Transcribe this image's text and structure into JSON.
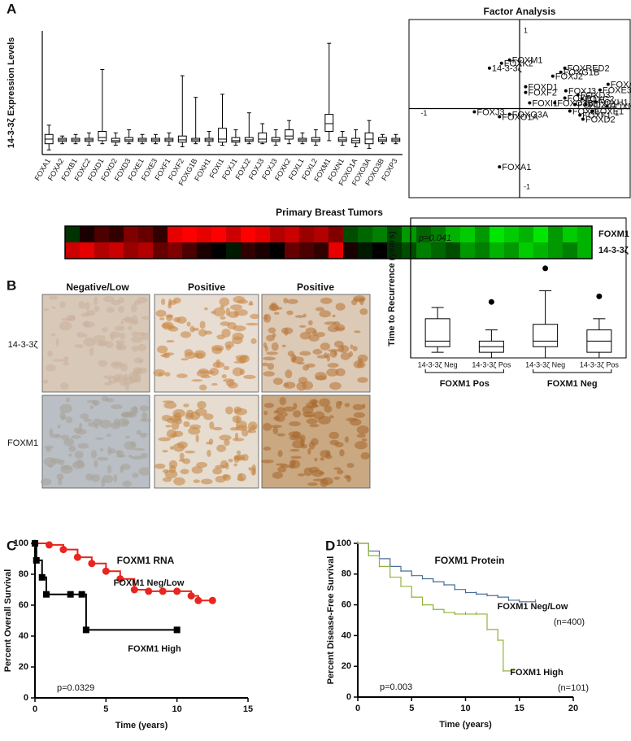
{
  "panels": [
    "A",
    "B",
    "C",
    "D"
  ],
  "ihc": {
    "columns": [
      "Negative/Low",
      "Positive",
      "Positive"
    ],
    "rows": [
      "14-3-3ζ",
      "FOXM1"
    ]
  },
  "chart_data": [
    {
      "type": "box",
      "ylabel": "14-3-3ζ Expression Levels",
      "categories": [
        "FOXA1",
        "FOXA2",
        "FOXB1",
        "FOXC2",
        "FOXD1",
        "FOXD2",
        "FOXD3",
        "FOXE1",
        "FOXE3",
        "FOXF1",
        "FOXF2",
        "FOXG1B",
        "FOXH1",
        "FOXI1",
        "FOXJ1",
        "FOXJ2",
        "FOXJ3",
        "FOXJ3",
        "FOXK2",
        "FOXL1",
        "FOXL2",
        "FOXM1",
        "FOXN1",
        "FOXO1A",
        "FOXO3A",
        "FOXO3B",
        "FOXP3"
      ],
      "min": [
        0.3,
        0.7,
        0.7,
        0.6,
        0.7,
        0.6,
        0.7,
        0.7,
        0.7,
        0.6,
        0.5,
        0.7,
        0.6,
        0.6,
        0.6,
        0.7,
        0.7,
        0.6,
        0.7,
        0.7,
        0.6,
        0.9,
        0.6,
        0.5,
        0.4,
        0.7,
        0.7
      ],
      "q1": [
        0.7,
        0.85,
        0.85,
        0.85,
        0.9,
        0.8,
        0.85,
        0.85,
        0.85,
        0.85,
        0.8,
        0.85,
        0.85,
        0.8,
        0.8,
        0.85,
        0.8,
        0.85,
        1.0,
        0.85,
        0.85,
        1.5,
        0.85,
        0.75,
        0.7,
        0.85,
        0.85
      ],
      "median": [
        1.0,
        0.95,
        0.95,
        0.95,
        1.1,
        0.9,
        0.95,
        0.95,
        0.95,
        0.95,
        0.95,
        0.95,
        0.95,
        1.0,
        0.9,
        0.95,
        1.0,
        0.95,
        1.2,
        0.95,
        0.95,
        2.0,
        0.95,
        0.9,
        1.0,
        0.95,
        0.95
      ],
      "q3": [
        1.3,
        1.05,
        1.05,
        1.05,
        1.5,
        1.05,
        1.1,
        1.05,
        1.05,
        1.05,
        1.2,
        1.05,
        1.05,
        1.7,
        1.1,
        1.1,
        1.4,
        1.1,
        1.6,
        1.05,
        1.1,
        2.6,
        1.1,
        1.05,
        1.4,
        1.1,
        1.05
      ],
      "max": [
        1.9,
        1.2,
        1.3,
        1.4,
        5.5,
        1.4,
        1.6,
        1.3,
        1.3,
        1.4,
        5.1,
        3.7,
        1.5,
        3.9,
        1.6,
        2.7,
        2.0,
        1.6,
        2.2,
        1.4,
        1.6,
        7.2,
        1.5,
        1.6,
        2.2,
        1.3,
        1.3
      ],
      "ylim": [
        0,
        8
      ],
      "color": "#000000"
    },
    {
      "type": "scatter",
      "title": "Factor Analysis",
      "labels": [
        "FOXM1",
        "FOXK2",
        "14-3-3ζ",
        "FOXRED2",
        "FOXG1B",
        "FOXJ2",
        "FOXD1",
        "FOXF2",
        "FOXJ3",
        "FOXB1",
        "FOXD3",
        "FOXC2",
        "FOXA2",
        "FOXE3",
        "FOXH1",
        "FOXN1",
        "FOXI1",
        "FOXO3B",
        "FOXL2",
        "FOXL1",
        "FOXJ1",
        "FOXE1",
        "FOXF1",
        "FOXD2",
        "FOXJ3",
        "FOXO3A",
        "FOXO1A",
        "FOXA1"
      ],
      "x": [
        -0.1,
        -0.18,
        -0.3,
        0.45,
        0.41,
        0.33,
        0.06,
        0.06,
        0.46,
        0.45,
        0.58,
        0.62,
        0.88,
        0.8,
        0.76,
        0.87,
        0.1,
        0.35,
        0.55,
        0.66,
        0.5,
        0.72,
        0.6,
        0.63,
        -0.45,
        -0.1,
        -0.2,
        -0.2
      ],
      "values": [
        0.6,
        0.56,
        0.5,
        0.5,
        0.45,
        0.4,
        0.27,
        0.2,
        0.22,
        0.13,
        0.17,
        0.12,
        0.3,
        0.23,
        0.08,
        0.03,
        0.07,
        0.07,
        0.05,
        0.05,
        -0.03,
        -0.03,
        -0.08,
        -0.13,
        -0.04,
        -0.07,
        -0.1,
        -0.72
      ],
      "xlim": [
        -1.1,
        1.1
      ],
      "ylim": [
        -1.1,
        1.1
      ],
      "xticks": [
        -1,
        1
      ],
      "yticks": [
        -1,
        1
      ],
      "color": "#000000"
    },
    {
      "type": "heatmap",
      "title": "Primary Breast Tumors",
      "colorscale": [
        "#00ff00",
        "#000000",
        "#ff0000"
      ],
      "rows": [
        {
          "name": "FOXM1",
          "values": [
            -0.2,
            0.1,
            0.3,
            0.2,
            0.5,
            0.4,
            0.2,
            0.9,
            1,
            0.9,
            1,
            0.8,
            1,
            0.9,
            0.7,
            0.8,
            0.6,
            0.7,
            0.5,
            -0.3,
            -0.4,
            -0.5,
            -0.3,
            -0.6,
            -0.4,
            -0.5,
            -0.7,
            -0.8,
            -0.6,
            -0.9,
            -0.8,
            -0.7,
            -0.9,
            -0.6,
            -0.8,
            -0.7
          ]
        },
        {
          "name": "14-3-3ζ",
          "values": [
            0.8,
            0.9,
            0.7,
            0.8,
            0.6,
            0.7,
            0.4,
            0.5,
            0.3,
            0.1,
            0,
            -0.1,
            0.2,
            0.1,
            0,
            0.4,
            0.3,
            0.2,
            0.9,
            0.1,
            -0.1,
            0,
            -0.2,
            -0.3,
            -0.5,
            -0.4,
            -0.3,
            -0.6,
            -0.5,
            -0.7,
            -0.6,
            -0.8,
            -0.7,
            -0.6,
            -0.5,
            -0.7
          ]
        }
      ]
    },
    {
      "type": "box",
      "ylabel": "Time to Recurrence (years)",
      "annotation": "p=0.041",
      "categories": [
        "14-3-3ζ Neg",
        "14-3-3ζ Pos",
        "14-3-3ζ Neg",
        "14-3-3ζ Pos"
      ],
      "groups": [
        "FOXM1 Pos",
        "FOXM1 Neg"
      ],
      "min": [
        1,
        0,
        0,
        0
      ],
      "q1": [
        2,
        1,
        2,
        1
      ],
      "median": [
        3,
        2,
        3,
        3
      ],
      "q3": [
        7,
        3,
        6,
        5
      ],
      "max": [
        9,
        5,
        12,
        7
      ],
      "outliers": [
        null,
        10,
        16,
        11
      ],
      "ylim": [
        0,
        25
      ],
      "color": "#000000"
    },
    {
      "type": "step",
      "title": "FOXM1 RNA",
      "xlabel": "Time (years)",
      "ylabel": "Percent Overall Survival",
      "annotation": "p=0.0329",
      "xlim": [
        0,
        15
      ],
      "ylim": [
        0,
        100
      ],
      "xticks": [
        0,
        5,
        10,
        15
      ],
      "yticks": [
        0,
        20,
        40,
        60,
        80,
        100
      ],
      "series": [
        {
          "name": "FOXM1 Neg/Low",
          "color": "#e8251f",
          "marker": "circle",
          "x": [
            0,
            1,
            2,
            3,
            4,
            5,
            6,
            7,
            8,
            9,
            10,
            11,
            11.5,
            12.5
          ],
          "values": [
            100,
            99,
            96,
            91,
            87,
            82,
            77,
            70,
            69,
            69,
            69,
            66,
            63,
            63
          ]
        },
        {
          "name": "FOXM1 High",
          "color": "#000000",
          "marker": "square",
          "x": [
            0,
            0.1,
            0.5,
            0.8,
            2.5,
            3.3,
            3.6,
            10
          ],
          "values": [
            100,
            89,
            78,
            67,
            67,
            67,
            44,
            44
          ]
        }
      ]
    },
    {
      "type": "step",
      "title": "FOXM1 Protein",
      "xlabel": "Time (years)",
      "ylabel": "Percent Disease-Free Survival",
      "annotation": "p=0.003",
      "xlim": [
        0,
        20
      ],
      "ylim": [
        0,
        100
      ],
      "xticks": [
        0,
        5,
        10,
        15,
        20
      ],
      "yticks": [
        0,
        20,
        40,
        60,
        80,
        100
      ],
      "series": [
        {
          "name": "FOXM1 Neg/Low",
          "note": "(n=400)",
          "color": "#4a6f9a",
          "marker": "tick",
          "x": [
            0,
            1,
            2,
            3,
            4,
            5,
            6,
            7,
            8,
            9,
            10,
            11,
            12,
            13,
            14,
            15,
            16.5
          ],
          "values": [
            100,
            95,
            90,
            85,
            82,
            79,
            77,
            75,
            73,
            70,
            68,
            67,
            66,
            65,
            63,
            62,
            62
          ]
        },
        {
          "name": "FOXM1 High",
          "note": "(n=101)",
          "color": "#8fb43a",
          "marker": "tick",
          "x": [
            0,
            1,
            2,
            3,
            4,
            5,
            6,
            7,
            8,
            9,
            10,
            11,
            12,
            13,
            13.5,
            14.5
          ],
          "values": [
            100,
            92,
            85,
            78,
            72,
            65,
            60,
            57,
            55,
            54,
            54,
            54,
            44,
            37,
            17,
            17
          ]
        }
      ]
    }
  ]
}
